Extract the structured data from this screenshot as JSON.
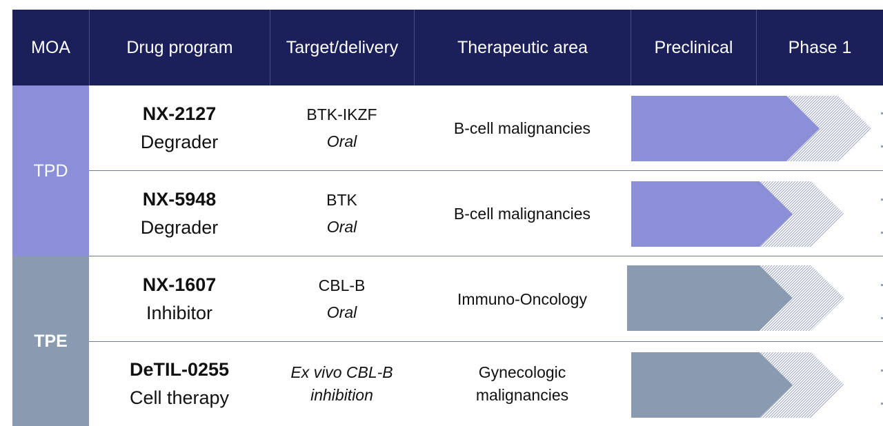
{
  "header": {
    "columns": [
      "MOA",
      "Drug program",
      "Target/delivery",
      "Therapeutic area",
      "Preclinical",
      "Phase 1"
    ]
  },
  "groups": [
    {
      "label": "TPD",
      "color": "#8a8fd8"
    },
    {
      "label": "TPE",
      "color": "#8a9ab0"
    }
  ],
  "rows": [
    {
      "name": "NX-2127",
      "type": "Degrader",
      "target": "BTK-IKZF",
      "delivery": "Oral",
      "area": "B-cell malignancies",
      "progress": 1.0,
      "color": "#8a8fd8"
    },
    {
      "name": "NX-5948",
      "type": "Degrader",
      "target": "BTK",
      "delivery": "Oral",
      "area": "B-cell malignancies",
      "progress": 0.6,
      "color": "#8a8fd8"
    },
    {
      "name": "NX-1607",
      "type": "Inhibitor",
      "target": "CBL-B",
      "delivery": "Oral",
      "area": "Immuno-Oncology",
      "progress": 0.6,
      "color": "#8a9ab0"
    },
    {
      "name": "DeTIL-0255",
      "type": "Cell therapy",
      "target_line1": "Ex vivo CBL-B",
      "target_line2": "inhibition",
      "area_line1": "Gynecologic",
      "area_line2": "malignancies",
      "progress": 0.6,
      "color": "#8a9ab0"
    }
  ]
}
